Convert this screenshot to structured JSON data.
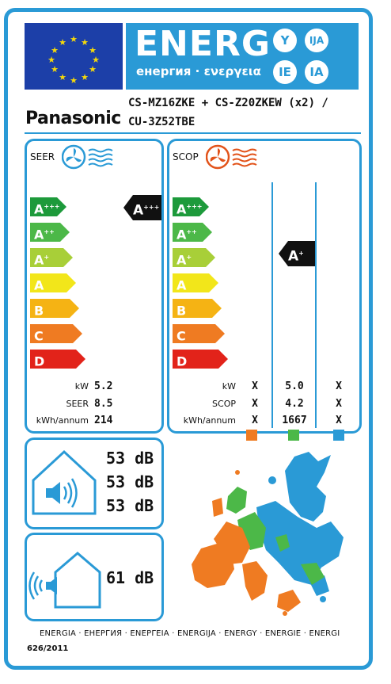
{
  "header": {
    "energy_word": "ENERG",
    "energy_sub": "енергия · ενεργεια",
    "lang_codes": [
      "Y",
      "IJA",
      "IE",
      "IA"
    ]
  },
  "brand": "Panasonic",
  "model_line1": "CS-MZ16ZKE + CS-Z20ZKEW (x2) /",
  "model_line2": "CU-3Z52TBE",
  "cooling": {
    "title": "SEER",
    "classes": [
      {
        "label": "A",
        "sup": "+++",
        "color": "#1d9a3b"
      },
      {
        "label": "A",
        "sup": "++",
        "color": "#4cb848"
      },
      {
        "label": "A",
        "sup": "+",
        "color": "#a8cf38"
      },
      {
        "label": "A",
        "sup": "",
        "color": "#f2e61a"
      },
      {
        "label": "B",
        "sup": "",
        "color": "#f5b314"
      },
      {
        "label": "C",
        "sup": "",
        "color": "#ef7b22"
      },
      {
        "label": "D",
        "sup": "",
        "color": "#e2231a"
      }
    ],
    "rating": {
      "label": "A",
      "sup": "+++"
    },
    "kw_label": "kW",
    "kw_value": "5.2",
    "seer_label": "SEER",
    "seer_value": "8.5",
    "annum_label": "kWh/annum",
    "annum_value": "214"
  },
  "heating": {
    "title": "SCOP",
    "classes": [
      {
        "label": "A",
        "sup": "+++",
        "color": "#1d9a3b"
      },
      {
        "label": "A",
        "sup": "++",
        "color": "#4cb848"
      },
      {
        "label": "A",
        "sup": "+",
        "color": "#a8cf38"
      },
      {
        "label": "A",
        "sup": "",
        "color": "#f2e61a"
      },
      {
        "label": "B",
        "sup": "",
        "color": "#f5b314"
      },
      {
        "label": "C",
        "sup": "",
        "color": "#ef7b22"
      },
      {
        "label": "D",
        "sup": "",
        "color": "#e2231a"
      }
    ],
    "rating": {
      "label": "A",
      "sup": "+"
    },
    "kw_label": "kW",
    "scop_label": "SCOP",
    "annum_label": "kWh/annum",
    "columns": [
      {
        "kw": "X",
        "scop": "X",
        "annum": "X",
        "color": "#ef7b22"
      },
      {
        "kw": "5.0",
        "scop": "4.2",
        "annum": "1667",
        "color": "#4cb848"
      },
      {
        "kw": "X",
        "scop": "X",
        "annum": "X",
        "color": "#2a9ad6"
      }
    ]
  },
  "indoor_noise": {
    "db1": "53 dB",
    "db2": "53 dB",
    "db3": "53 dB"
  },
  "outdoor_noise": {
    "db": "61 dB"
  },
  "footer_text": "ENERGIA · ЕНЕРГИЯ · ΕΝΕΡΓΕΙΑ · ENERGIJA · ENERGY · ENERGIE · ENERGI",
  "regulation": "626/2011",
  "colors": {
    "frame": "#2a9ad6",
    "eu_blue": "#1c3fa8",
    "star": "#f5d90a"
  }
}
